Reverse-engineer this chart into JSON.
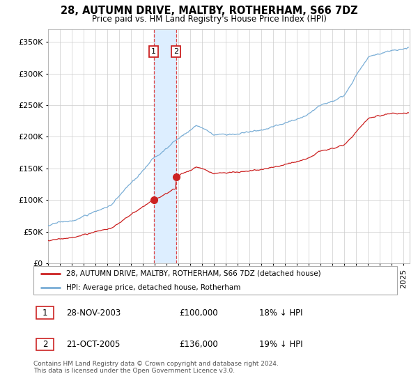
{
  "title": "28, AUTUMN DRIVE, MALTBY, ROTHERHAM, S66 7DZ",
  "subtitle": "Price paid vs. HM Land Registry's House Price Index (HPI)",
  "ytick_vals": [
    0,
    50000,
    100000,
    150000,
    200000,
    250000,
    300000,
    350000
  ],
  "ylim": [
    0,
    370000
  ],
  "xlim_start": 1995.0,
  "xlim_end": 2025.5,
  "hpi_color": "#7aaed6",
  "price_color": "#cc2222",
  "shade_color": "#ddeeff",
  "transaction1": {
    "date_num": 2004.0,
    "price": 100000,
    "label": "1"
  },
  "transaction2": {
    "date_num": 2005.83,
    "price": 136000,
    "label": "2"
  },
  "legend_line1": "28, AUTUMN DRIVE, MALTBY, ROTHERHAM, S66 7DZ (detached house)",
  "legend_line2": "HPI: Average price, detached house, Rotherham",
  "table_row1": [
    "1",
    "28-NOV-2003",
    "£100,000",
    "18% ↓ HPI"
  ],
  "table_row2": [
    "2",
    "21-OCT-2005",
    "£136,000",
    "19% ↓ HPI"
  ],
  "footer": "Contains HM Land Registry data © Crown copyright and database right 2024.\nThis data is licensed under the Open Government Licence v3.0.",
  "background_color": "#ffffff"
}
